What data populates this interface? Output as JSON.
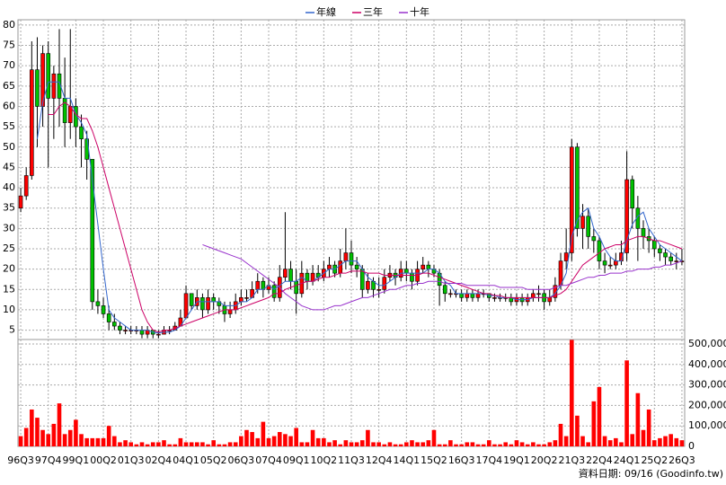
{
  "chart_data": {
    "type": "candlestick",
    "legend": "top",
    "annotation": "資料日期: 09/16 (Goodinfo.tw)",
    "categories": [
      "96Q3",
      null,
      null,
      null,
      null,
      "97Q4",
      null,
      null,
      null,
      null,
      "99Q1",
      null,
      null,
      null,
      null,
      "00Q2",
      null,
      null,
      null,
      null,
      "01Q3",
      null,
      null,
      null,
      null,
      "02Q4",
      null,
      null,
      null,
      null,
      "04Q1",
      null,
      null,
      null,
      null,
      "05Q2",
      null,
      null,
      null,
      null,
      "06Q3",
      null,
      null,
      null,
      null,
      "07Q4",
      null,
      null,
      null,
      null,
      "09Q1",
      null,
      null,
      null,
      null,
      "10Q2",
      null,
      null,
      null,
      null,
      "11Q3",
      null,
      null,
      null,
      null,
      "12Q4",
      null,
      null,
      null,
      null,
      "14Q1",
      null,
      null,
      null,
      null,
      "15Q2",
      null,
      null,
      null,
      null,
      "16Q3",
      null,
      null,
      null,
      null,
      "17Q4",
      null,
      null,
      null,
      null,
      "19Q1",
      null,
      null,
      null,
      null,
      "20Q2",
      null,
      null,
      null,
      null,
      "21Q3",
      null,
      null,
      null,
      null,
      "22Q4",
      null,
      null,
      null,
      null,
      "24Q1",
      null,
      null,
      null,
      null,
      "25Q2",
      null,
      null,
      null,
      null,
      "26Q3"
    ],
    "open": [
      35,
      38,
      43,
      69,
      60,
      73,
      62,
      68,
      62,
      56,
      60,
      55,
      52,
      47,
      12,
      11,
      9,
      7,
      6,
      5,
      5,
      5,
      5,
      4,
      5,
      4,
      4,
      5,
      5,
      6,
      8,
      14,
      11,
      13,
      10,
      13,
      12,
      11,
      9,
      10,
      12,
      13,
      13,
      15,
      17,
      15,
      16,
      13,
      18,
      20,
      17,
      14,
      19,
      17,
      19,
      18,
      20,
      21,
      19,
      22,
      24,
      21,
      20,
      15,
      17,
      15,
      15,
      18,
      19,
      18,
      20,
      19,
      17,
      20,
      21,
      20,
      19,
      16,
      14,
      14,
      14,
      13,
      14,
      13,
      14,
      14,
      13,
      13,
      13,
      13,
      12,
      13,
      12,
      13,
      14,
      14,
      12,
      13,
      16,
      22,
      24,
      50,
      30,
      33,
      28,
      27,
      22,
      21,
      21,
      22,
      24,
      42,
      35,
      30,
      28,
      27,
      25,
      24,
      23,
      22,
      22
    ],
    "high": [
      40,
      45,
      76,
      77,
      75,
      76,
      70,
      79,
      72,
      79,
      62,
      58,
      54,
      47,
      15,
      13,
      11,
      9,
      7,
      6,
      6,
      6,
      6,
      6,
      5,
      5,
      6,
      6,
      7,
      10,
      16,
      14,
      15,
      14,
      15,
      14,
      13,
      12,
      12,
      14,
      15,
      15,
      17,
      19,
      18,
      18,
      17,
      21,
      34,
      22,
      20,
      22,
      20,
      21,
      21,
      22,
      23,
      22,
      25,
      30,
      27,
      23,
      21,
      19,
      18,
      18,
      20,
      21,
      20,
      22,
      22,
      20,
      22,
      23,
      22,
      21,
      20,
      17,
      15,
      15,
      15,
      15,
      15,
      15,
      15,
      14,
      14,
      14,
      14,
      14,
      14,
      14,
      14,
      15,
      16,
      15,
      15,
      18,
      24,
      30,
      52,
      51,
      36,
      35,
      30,
      28,
      24,
      23,
      24,
      27,
      49,
      43,
      38,
      32,
      30,
      28,
      26,
      25,
      24,
      24,
      25
    ],
    "low": [
      34,
      37,
      42,
      50,
      55,
      45,
      52,
      55,
      50,
      52,
      50,
      45,
      42,
      10,
      9,
      8,
      5,
      5,
      4,
      4,
      4,
      4,
      3,
      3,
      3,
      3,
      4,
      4,
      5,
      6,
      8,
      10,
      10,
      8,
      9,
      10,
      9,
      7,
      8,
      9,
      11,
      12,
      13,
      14,
      13,
      14,
      12,
      12,
      17,
      15,
      9,
      13,
      15,
      16,
      17,
      17,
      18,
      18,
      18,
      20,
      19,
      18,
      13,
      14,
      13,
      13,
      14,
      17,
      16,
      17,
      17,
      15,
      16,
      19,
      18,
      18,
      11,
      12,
      13,
      13,
      12,
      12,
      12,
      12,
      13,
      12,
      12,
      12,
      12,
      11,
      11,
      11,
      11,
      12,
      12,
      10,
      11,
      12,
      15,
      20,
      22,
      28,
      25,
      25,
      24,
      20,
      19,
      20,
      20,
      21,
      22,
      30,
      22,
      25,
      24,
      23,
      22,
      21,
      21,
      20,
      21
    ],
    "close": [
      38,
      43,
      69,
      60,
      73,
      62,
      68,
      62,
      56,
      60,
      55,
      52,
      47,
      12,
      11,
      9,
      7,
      6,
      5,
      5,
      5,
      5,
      4,
      5,
      4,
      4,
      5,
      5,
      6,
      8,
      14,
      11,
      13,
      10,
      13,
      12,
      11,
      9,
      10,
      12,
      13,
      13,
      15,
      17,
      15,
      16,
      13,
      18,
      20,
      17,
      14,
      19,
      17,
      19,
      18,
      20,
      21,
      19,
      22,
      24,
      21,
      20,
      15,
      17,
      15,
      15,
      18,
      19,
      18,
      20,
      19,
      17,
      20,
      21,
      20,
      19,
      16,
      14,
      14,
      14,
      13,
      14,
      13,
      14,
      14,
      13,
      13,
      13,
      13,
      12,
      13,
      12,
      13,
      14,
      14,
      12,
      13,
      16,
      22,
      24,
      50,
      30,
      33,
      28,
      27,
      22,
      21,
      21,
      22,
      24,
      42,
      35,
      30,
      28,
      27,
      25,
      24,
      23,
      22,
      22,
      22
    ],
    "up_color": "#ff0000",
    "down_color": "#00c000",
    "volume": [
      50000,
      90000,
      180000,
      140000,
      80000,
      60000,
      110000,
      210000,
      60000,
      80000,
      130000,
      60000,
      40000,
      40000,
      40000,
      40000,
      100000,
      50000,
      20000,
      30000,
      20000,
      10000,
      20000,
      10000,
      20000,
      20000,
      30000,
      10000,
      10000,
      40000,
      20000,
      20000,
      20000,
      20000,
      10000,
      30000,
      10000,
      10000,
      20000,
      20000,
      50000,
      80000,
      70000,
      40000,
      120000,
      40000,
      50000,
      70000,
      60000,
      50000,
      90000,
      20000,
      20000,
      80000,
      40000,
      40000,
      20000,
      30000,
      10000,
      30000,
      20000,
      20000,
      30000,
      80000,
      20000,
      20000,
      10000,
      20000,
      10000,
      10000,
      20000,
      30000,
      20000,
      20000,
      30000,
      80000,
      10000,
      10000,
      30000,
      10000,
      10000,
      20000,
      20000,
      10000,
      10000,
      30000,
      10000,
      10000,
      20000,
      10000,
      30000,
      20000,
      10000,
      20000,
      10000,
      10000,
      20000,
      30000,
      110000,
      50000,
      520000,
      150000,
      50000,
      20000,
      220000,
      290000,
      50000,
      30000,
      40000,
      20000,
      420000,
      60000,
      260000,
      80000,
      180000,
      30000,
      40000,
      50000,
      60000,
      40000,
      30000
    ],
    "volume_color": "#ff0000",
    "series": [
      {
        "name": "年線",
        "color": "#3366cc",
        "values": [
          null,
          null,
          null,
          52,
          61,
          66,
          66,
          66,
          62,
          62,
          58,
          56,
          53,
          42,
          31,
          20,
          10,
          8,
          7,
          6,
          5,
          5,
          5,
          5,
          4.5,
          4.3,
          4.5,
          4.5,
          5,
          6,
          8,
          10,
          12,
          12,
          12,
          12,
          12,
          11,
          11,
          11,
          12,
          12,
          13,
          15,
          15,
          16,
          15,
          16,
          17,
          17,
          17,
          18,
          17,
          17,
          18,
          19,
          20,
          20,
          21,
          22,
          22,
          22,
          20,
          18,
          17,
          16,
          16,
          17,
          18,
          19,
          19,
          19,
          19,
          19,
          20,
          20,
          19,
          17,
          16,
          14,
          14,
          14,
          14,
          14,
          14,
          13.5,
          13.5,
          13,
          13,
          13,
          12.5,
          12.5,
          12.5,
          13,
          13,
          13,
          13,
          14,
          16,
          19,
          28,
          32,
          34,
          35,
          30,
          28,
          25,
          23,
          22,
          22,
          27,
          31,
          33,
          34,
          30,
          28,
          26,
          25,
          24,
          23,
          22
        ]
      },
      {
        "name": "三年",
        "color": "#cc0066",
        "values": [
          null,
          null,
          null,
          null,
          null,
          58,
          58,
          60,
          61,
          60,
          58,
          57,
          57,
          54,
          50,
          45,
          40,
          35,
          30,
          25,
          20,
          15,
          10,
          7,
          5,
          4.5,
          5,
          5,
          5.5,
          6,
          6.5,
          7,
          7.5,
          8,
          8.5,
          9,
          9.5,
          10,
          10,
          10,
          10.5,
          11,
          11.5,
          12,
          12.5,
          13,
          14,
          14,
          15,
          15.5,
          16,
          16.5,
          17,
          17,
          17.5,
          18,
          18,
          18.5,
          19,
          19,
          19.5,
          19.5,
          19.5,
          19,
          19,
          19,
          18.5,
          18.5,
          18.5,
          18.5,
          18.5,
          18.5,
          18.5,
          19,
          19,
          18.5,
          18,
          17.5,
          17,
          16.5,
          16,
          15.5,
          15,
          14.5,
          14,
          14,
          13.5,
          13.5,
          13,
          13,
          13,
          13,
          13,
          13,
          13,
          13,
          13,
          13.5,
          14,
          15,
          17,
          19,
          21,
          22,
          23,
          24,
          25,
          25.5,
          26,
          26,
          27,
          27.5,
          28,
          28,
          27.5,
          27,
          27,
          26.5,
          26,
          25.5,
          25
        ]
      },
      {
        "name": "十年",
        "color": "#9933cc",
        "values": [
          null,
          null,
          null,
          null,
          null,
          null,
          null,
          null,
          null,
          null,
          null,
          null,
          null,
          null,
          null,
          null,
          null,
          null,
          null,
          null,
          null,
          null,
          null,
          null,
          null,
          null,
          null,
          null,
          null,
          null,
          null,
          null,
          null,
          26,
          25.5,
          25,
          24.5,
          24,
          23.5,
          23,
          22.5,
          21.5,
          20.5,
          19.5,
          18.5,
          17.5,
          16.5,
          15.5,
          14,
          13,
          12,
          11,
          10.5,
          10,
          10,
          10,
          10.5,
          11,
          11,
          11.5,
          12,
          12.5,
          13,
          13,
          13.5,
          14,
          14.5,
          15,
          15,
          15.5,
          16,
          16,
          16.5,
          16.5,
          17,
          17,
          17,
          16.5,
          16.5,
          16.5,
          16.5,
          16,
          16,
          16,
          16,
          16,
          16,
          15.5,
          15.5,
          15.5,
          15.5,
          15.5,
          15,
          15,
          15,
          15,
          15,
          15.5,
          16,
          16,
          16.5,
          17,
          17.5,
          18,
          18,
          18.5,
          18.5,
          19,
          19,
          19,
          19.5,
          19.5,
          20,
          20,
          20,
          20.5,
          20.5,
          21,
          21,
          21.5,
          22
        ]
      }
    ],
    "ylim": [
      2.7,
      81.3
    ],
    "yticks": [
      5,
      10,
      15,
      20,
      25,
      30,
      35,
      40,
      45,
      50,
      55,
      60,
      65,
      70,
      75,
      80
    ],
    "y2lim": [
      0,
      522000
    ],
    "y2ticks": [
      0,
      {
        "value": 100000,
        "label": "100,000"
      },
      {
        "value": 200000,
        "label": "200,000"
      },
      {
        "value": 300000,
        "label": "300,000"
      },
      {
        "value": 400000,
        "label": "400,000"
      },
      {
        "value": 500000,
        "label": "500,000"
      }
    ],
    "grid": true
  }
}
